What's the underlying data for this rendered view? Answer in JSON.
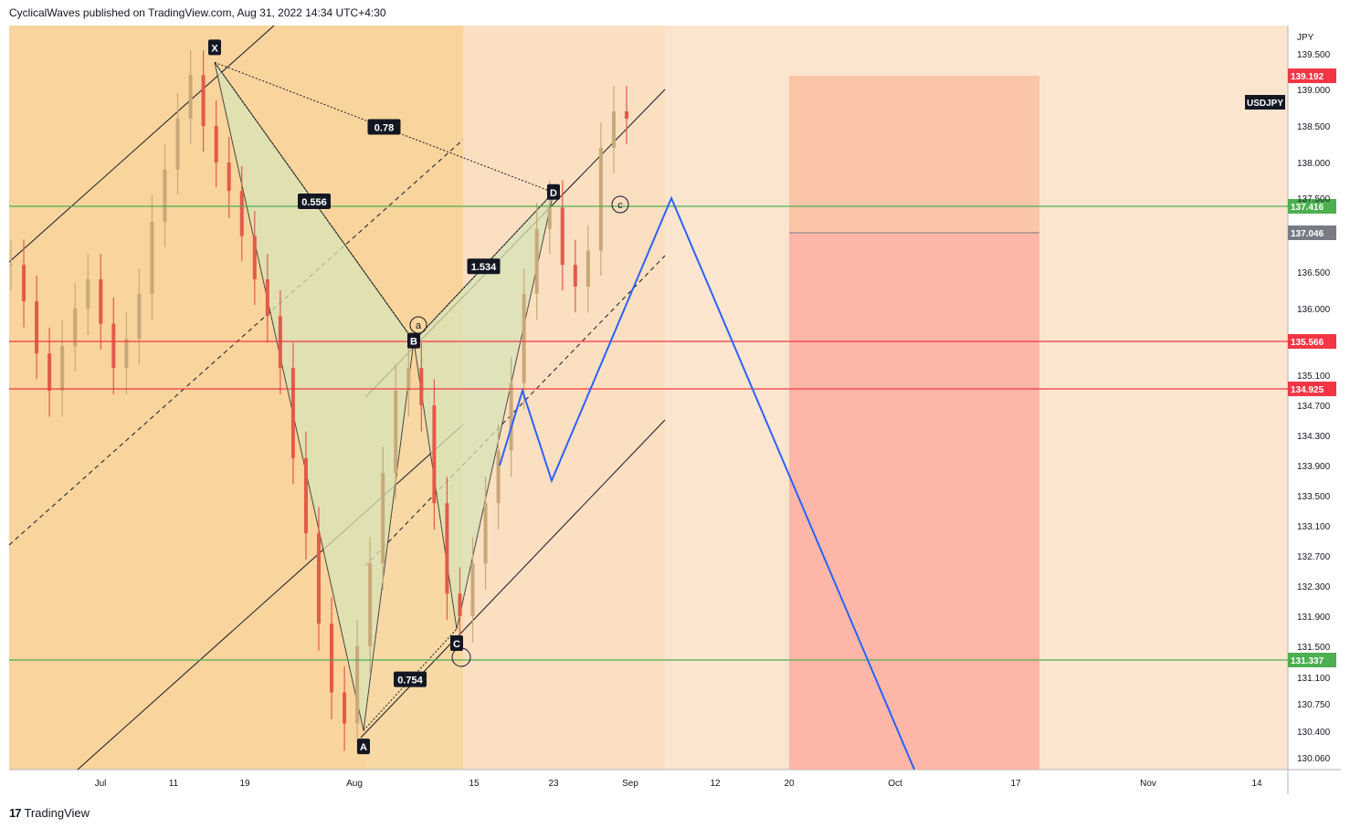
{
  "header": {
    "attribution": "CyclicalWaves published on TradingView.com, Aug 31, 2022 14:34 UTC+4:30"
  },
  "footer": {
    "brand": "TradingView",
    "logo": "17"
  },
  "colors": {
    "bg_light": "#fce5cf",
    "bg_dark": "#f9d49c",
    "green": "#4caf50",
    "red": "#f23645",
    "blue": "#2962ff",
    "harmonic_fill": "#d8e4b8",
    "target_zone": "#fcaa9c",
    "candle_up": "#c8a878",
    "candle_down": "#e35a4a"
  },
  "chart_data": {
    "type": "line",
    "symbol": "USDJPY",
    "currency": "JPY",
    "ylim": [
      129.9,
      139.8
    ],
    "x_ticks": [
      "Jul",
      "11",
      "19",
      "Aug",
      "15",
      "23",
      "Sep",
      "12",
      "20",
      "Oct",
      "17",
      "Nov",
      "14"
    ],
    "y_ticks": [
      "139.500",
      "139.000",
      "138.500",
      "138.000",
      "137.500",
      "136.500",
      "136.000",
      "135.100",
      "134.700",
      "134.300",
      "133.900",
      "133.500",
      "133.100",
      "132.700",
      "132.300",
      "131.900",
      "131.500",
      "131.100",
      "130.750",
      "130.400",
      "130.060"
    ],
    "horizontal_levels": [
      {
        "value": 137.416,
        "label": "137.416",
        "color": "green"
      },
      {
        "value": 135.566,
        "label": "135.566",
        "color": "red"
      },
      {
        "value": 134.925,
        "label": "134.925",
        "color": "red"
      },
      {
        "value": 131.337,
        "label": "131.337",
        "color": "green"
      }
    ],
    "price_labels": [
      {
        "value": 139.192,
        "label": "139.192",
        "color": "#f23645"
      },
      {
        "value": 137.046,
        "label": "137.046",
        "color": "#787b86"
      }
    ],
    "harmonic_points": [
      {
        "name": "X",
        "date": "Jul 14",
        "price": 139.38
      },
      {
        "name": "A",
        "date": "Aug 2",
        "price": 130.41
      },
      {
        "name": "B",
        "date": "Aug 8",
        "price": 135.57
      },
      {
        "name": "C",
        "date": "Aug 11",
        "price": 131.73
      },
      {
        "name": "D",
        "date": "Aug 23",
        "price": 137.58
      }
    ],
    "ratios": [
      "0.556",
      "0.78",
      "0.754",
      "1.534"
    ],
    "wave_labels": [
      "a",
      "c"
    ],
    "projection": {
      "color": "blue",
      "points": [
        {
          "date": "Aug 16",
          "price": 133.9
        },
        {
          "date": "Aug 18",
          "price": 134.9
        },
        {
          "date": "Aug 20",
          "price": 133.7
        },
        {
          "date": "Sep 4",
          "price": 137.5
        },
        {
          "date": "Oct 4",
          "price": 129.9
        }
      ]
    },
    "target_zone": {
      "from": "Sep 20",
      "to": "Oct 18",
      "top": 139.192,
      "bottom": 129.9,
      "mid_line": 137.046
    },
    "ohlc_sampled_closes": [
      136.6,
      136.1,
      135.4,
      134.9,
      135.5,
      136.0,
      136.4,
      135.8,
      135.2,
      135.6,
      136.2,
      137.2,
      137.9,
      138.6,
      139.2,
      138.5,
      138.0,
      137.6,
      137.0,
      136.4,
      135.9,
      135.2,
      134.0,
      133.0,
      131.8,
      130.9,
      130.5,
      131.5,
      132.6,
      133.8,
      134.9,
      135.2,
      134.7,
      133.4,
      132.2,
      131.9,
      132.6,
      133.4,
      134.1,
      135.0,
      136.2,
      137.1,
      137.4,
      136.6,
      136.3,
      136.8,
      138.2,
      138.7,
      138.6
    ]
  }
}
